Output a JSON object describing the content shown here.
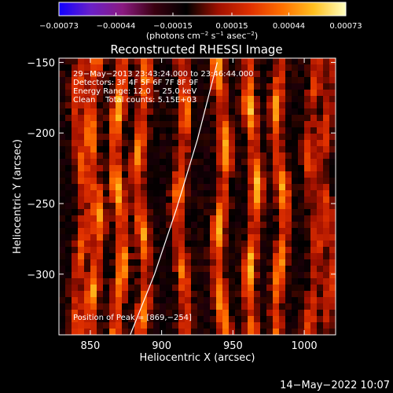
{
  "chart_data": {
    "type": "heatmap",
    "title": "Reconstructed RHESSI Image",
    "xlabel": "Heliocentric X (arcsec)",
    "ylabel": "Heliocentric Y (arcsec)",
    "xlim": [
      828,
      1022
    ],
    "ylim": [
      -343,
      -147
    ],
    "xticks": [
      850,
      900,
      950,
      1000
    ],
    "yticks": [
      -150,
      -200,
      -250,
      -300
    ],
    "xtick_labels": [
      "850",
      "900",
      "950",
      "1000"
    ],
    "ytick_labels": [
      "−150",
      "−200",
      "−250",
      "−300"
    ],
    "colorbar": {
      "range": [
        -0.00073,
        0.00073
      ],
      "ticks": [
        -0.00073,
        -0.00044,
        -0.00015,
        0.00015,
        0.00044,
        0.00073
      ],
      "tick_labels": [
        "−0.00073",
        "−0.00044",
        "−0.00015",
        "0.00015",
        "0.00044",
        "0.00073"
      ],
      "unit_label": {
        "prefix": "(photons cm",
        "exp1": "−2",
        "mid1": " s",
        "exp2": "−1",
        "mid2": " asec",
        "exp3": "−2",
        "suffix": ")"
      },
      "colors": [
        "#1000ff",
        "#6a20c8",
        "#8a1a80",
        "#3a0010",
        "#000000",
        "#a01000",
        "#e03000",
        "#ff7000",
        "#ffc020",
        "#ffffc0"
      ]
    },
    "annotations": [
      "29−May−2013 23:43:24.000 to 23:46:44.000",
      "Detectors: 3F 4F 5F 6F 7F 8F 9F",
      "Energy Range: 12.0 − 25.0 keV",
      "Clean    Total counts: 5.15E+03",
      "Position of Peak = [869,−254]"
    ],
    "peak": [
      869,
      -254
    ],
    "limb_curve": [
      [
        878,
        -343
      ],
      [
        895,
        -300
      ],
      [
        910,
        -255
      ],
      [
        925,
        -205
      ],
      [
        939,
        -150
      ]
    ],
    "ridges": [
      {
        "x": 843,
        "amp": 0.65
      },
      {
        "x": 853,
        "amp": 0.9
      },
      {
        "x": 870,
        "amp": 1.0
      },
      {
        "x": 886,
        "amp": 0.85
      },
      {
        "x": 914,
        "amp": 0.8
      },
      {
        "x": 942,
        "amp": 0.95
      },
      {
        "x": 964,
        "amp": 1.0
      },
      {
        "x": 983,
        "amp": 0.9
      },
      {
        "x": 1006,
        "amp": 0.55
      },
      {
        "x": 1016,
        "amp": 0.55
      }
    ]
  },
  "footer": {
    "date": "14−May−2022 10:07"
  }
}
